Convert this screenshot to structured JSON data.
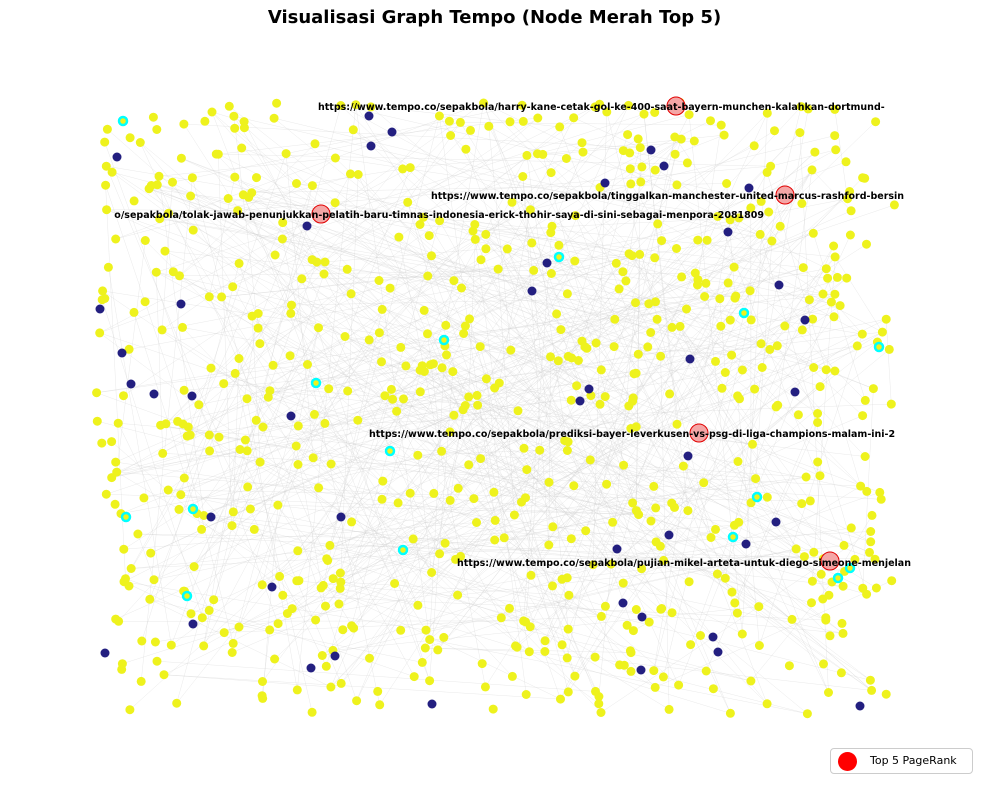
{
  "chart_data": {
    "type": "scatter",
    "title": "Visualisasi Graph Tempo (Node Merah Top 5)",
    "grid": false,
    "legend_placement": "lower-right",
    "legend": [
      {
        "label": "Top 5 PageRank",
        "color": "#ff0000"
      }
    ],
    "colors": {
      "node_regular": "#eef21d",
      "node_dark": "#231f80",
      "node_ring": "#00ffff",
      "node_top": "#f4a6a6",
      "node_top_border": "#e10000",
      "edge": "#cfcfcf"
    },
    "top5_nodes": [
      {
        "url": "https://www.tempo.co/sepakbola/harry-kane-cetak-gol-ke-400-saat-bayern-munchen-kalahkan-dortmund-"
      },
      {
        "url": "https://www.tempo.co/sepakbola/tinggalkan-manchester-united-marcus-rashford-bersin"
      },
      {
        "url": "o/sepakbola/tolak-jawab-penunjukkan-pelatih-baru-timnas-indonesia-erick-thohir-saya-di-sini-sebagai-menpora-2081809"
      },
      {
        "url": "https://www.tempo.co/sepakbola/prediksi-bayer-leverkusen-vs-psg-di-liga-champions-malam-ini-2"
      },
      {
        "url": "https://www.tempo.co/sepakbola/pujian-mikel-arteta-untuk-diego-simeone-menjelan"
      }
    ]
  }
}
